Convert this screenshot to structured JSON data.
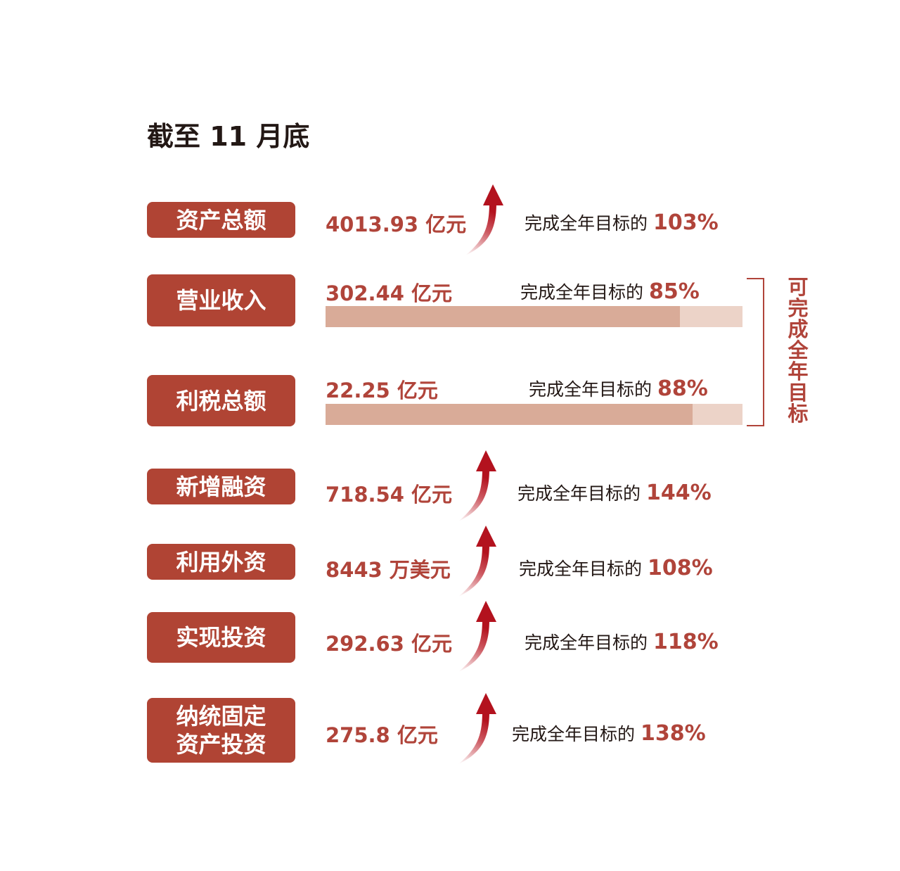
{
  "title": "截至 11 月底",
  "bracket_note": "可完成全年目标",
  "colors": {
    "label_bg": "#b04434",
    "accent": "#b0443a",
    "bar_fill": "#d9ab98",
    "bar_track": "#ecd3c8"
  },
  "rows": [
    {
      "label": "资产总额",
      "value": "4013.93 亿元",
      "pct_prefix": "完成全年目标的",
      "pct": "103%",
      "indicator": "up-arrow"
    },
    {
      "label": "营业收入",
      "value": "302.44 亿元",
      "pct_prefix": "完成全年目标的",
      "pct": "85%",
      "indicator": "progress-bar",
      "progress": 85
    },
    {
      "label": "利税总额",
      "value": "22.25 亿元",
      "pct_prefix": "完成全年目标的",
      "pct": "88%",
      "indicator": "progress-bar",
      "progress": 88
    },
    {
      "label": "新增融资",
      "value": "718.54 亿元",
      "pct_prefix": "完成全年目标的",
      "pct": "144%",
      "indicator": "up-arrow"
    },
    {
      "label": "利用外资",
      "value": "8443 万美元",
      "pct_prefix": "完成全年目标的",
      "pct": "108%",
      "indicator": "up-arrow"
    },
    {
      "label": "实现投资",
      "value": "292.63 亿元",
      "pct_prefix": "完成全年目标的",
      "pct": "118%",
      "indicator": "up-arrow"
    },
    {
      "label": "纳统固定\n资产投资",
      "value": "275.8 亿元",
      "pct_prefix": "完成全年目标的",
      "pct": "138%",
      "indicator": "up-arrow"
    }
  ]
}
